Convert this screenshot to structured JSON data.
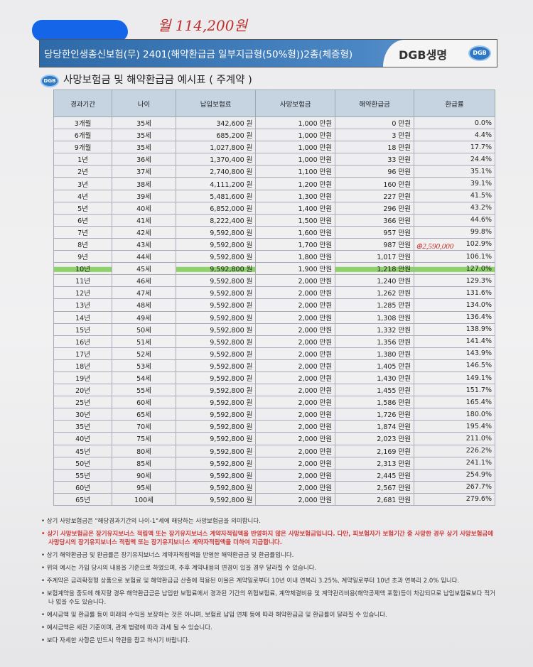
{
  "handwritten": {
    "monthly": "월 114,200원",
    "note": "⊕2,590,000"
  },
  "header": {
    "title": "당당한인생종신보험(무) 2401(해약환급금 일부지급형(50%형))2종(체증형)",
    "brand": "DGB생명",
    "logo_text": "DGB"
  },
  "section": {
    "title": "사망보험금 및 해약환급금 예시표 ( 주계약 )"
  },
  "table": {
    "headers": [
      "경과기간",
      "나이",
      "납입보험료",
      "사망보험금",
      "해약환급금",
      "환급률"
    ],
    "rows": [
      [
        "3개월",
        "35세",
        "342,600 원",
        "1,000 만원",
        "0 만원",
        "0.0%"
      ],
      [
        "6개월",
        "35세",
        "685,200 원",
        "1,000 만원",
        "3 만원",
        "4.4%"
      ],
      [
        "9개월",
        "35세",
        "1,027,800 원",
        "1,000 만원",
        "18 만원",
        "17.7%"
      ],
      [
        "1년",
        "36세",
        "1,370,400 원",
        "1,000 만원",
        "33 만원",
        "24.4%"
      ],
      [
        "2년",
        "37세",
        "2,740,800 원",
        "1,100 만원",
        "96 만원",
        "35.1%"
      ],
      [
        "3년",
        "38세",
        "4,111,200 원",
        "1,200 만원",
        "160 만원",
        "39.1%"
      ],
      [
        "4년",
        "39세",
        "5,481,600 원",
        "1,300 만원",
        "227 만원",
        "41.5%"
      ],
      [
        "5년",
        "40세",
        "6,852,000 원",
        "1,400 만원",
        "296 만원",
        "43.2%"
      ],
      [
        "6년",
        "41세",
        "8,222,400 원",
        "1,500 만원",
        "366 만원",
        "44.6%"
      ],
      [
        "7년",
        "42세",
        "9,592,800 원",
        "1,600 만원",
        "957 만원",
        "99.8%"
      ],
      [
        "8년",
        "43세",
        "9,592,800 원",
        "1,700 만원",
        "987 만원",
        "102.9%"
      ],
      [
        "9년",
        "44세",
        "9,592,800 원",
        "1,800 만원",
        "1,017 만원",
        "106.1%"
      ],
      [
        "10년",
        "45세",
        "9,592,800 원",
        "1,900 만원",
        "1,218 만원",
        "127.0%"
      ],
      [
        "11년",
        "46세",
        "9,592,800 원",
        "2,000 만원",
        "1,240 만원",
        "129.3%"
      ],
      [
        "12년",
        "47세",
        "9,592,800 원",
        "2,000 만원",
        "1,262 만원",
        "131.6%"
      ],
      [
        "13년",
        "48세",
        "9,592,800 원",
        "2,000 만원",
        "1,285 만원",
        "134.0%"
      ],
      [
        "14년",
        "49세",
        "9,592,800 원",
        "2,000 만원",
        "1,308 만원",
        "136.4%"
      ],
      [
        "15년",
        "50세",
        "9,592,800 원",
        "2,000 만원",
        "1,332 만원",
        "138.9%"
      ],
      [
        "16년",
        "51세",
        "9,592,800 원",
        "2,000 만원",
        "1,356 만원",
        "141.4%"
      ],
      [
        "17년",
        "52세",
        "9,592,800 원",
        "2,000 만원",
        "1,380 만원",
        "143.9%"
      ],
      [
        "18년",
        "53세",
        "9,592,800 원",
        "2,000 만원",
        "1,405 만원",
        "146.5%"
      ],
      [
        "19년",
        "54세",
        "9,592,800 원",
        "2,000 만원",
        "1,430 만원",
        "149.1%"
      ],
      [
        "20년",
        "55세",
        "9,592,800 원",
        "2,000 만원",
        "1,455 만원",
        "151.7%"
      ],
      [
        "25년",
        "60세",
        "9,592,800 원",
        "2,000 만원",
        "1,586 만원",
        "165.4%"
      ],
      [
        "30년",
        "65세",
        "9,592,800 원",
        "2,000 만원",
        "1,726 만원",
        "180.0%"
      ],
      [
        "35년",
        "70세",
        "9,592,800 원",
        "2,000 만원",
        "1,874 만원",
        "195.4%"
      ],
      [
        "40년",
        "75세",
        "9,592,800 원",
        "2,000 만원",
        "2,023 만원",
        "211.0%"
      ],
      [
        "45년",
        "80세",
        "9,592,800 원",
        "2,000 만원",
        "2,169 만원",
        "226.2%"
      ],
      [
        "50년",
        "85세",
        "9,592,800 원",
        "2,000 만원",
        "2,313 만원",
        "241.1%"
      ],
      [
        "55년",
        "90세",
        "9,592,800 원",
        "2,000 만원",
        "2,445 만원",
        "254.9%"
      ],
      [
        "60년",
        "95세",
        "9,592,800 원",
        "2,000 만원",
        "2,567 만원",
        "267.7%"
      ],
      [
        "65년",
        "100세",
        "9,592,800 원",
        "2,000 만원",
        "2,681 만원",
        "279.6%"
      ]
    ],
    "highlighted_row": "10년"
  },
  "notes": [
    {
      "text": "• 상기 사망보험금은 \"해당경과기간의 나이-1\"세에 해당하는 사망보험금을 의미합니다.",
      "red": false
    },
    {
      "text": "• 상기 사망보험금은 장기유지보너스 적립액 또는 장기유지보너스 계약자적립액을 반영하지 않은 사망보험금입니다. 다만, 피보험자가 보험기간 중 사망한 경우 상기 사망보험금에 사망당시의 장기유지보너스 적립액 또는 장기유지보너스 계약자적립액을 더하여 지급합니다.",
      "red": true
    },
    {
      "text": "• 상기 해약환급금 및 환급률은 장기유지보너스 계약자적립액을 반영한 해약환급금 및 환급률입니다.",
      "red": false
    },
    {
      "text": "• 위의 예시는 가입 당시의 내용을 기준으로 하였으며, 추후 계약내용의 변경이 있을 경우 달라질 수 있습니다.",
      "red": false
    },
    {
      "text": "• 주계약은 금리확정형 상품으로 보험료 및 해약환급금 산출에 적용된 이율은 계약일로부터 10년 이내 연복리 3.25%, 계약일로부터 10년 초과 연복리 2.0% 입니다.",
      "red": false
    },
    {
      "text": "• 보험계약을 중도에 해지할 경우 해약환급금은 납입한 보험료에서 경과된 기간의 위험보험료, 계약체결비용 및 계약관리비용(해약공제액 포함)등이 차감되므로 납입보험료보다 적거나 없을 수도 있습니다.",
      "red": false
    },
    {
      "text": "• 예시금액 및 환급률 등이 미래의 수익을 보장하는 것은 아니며, 보험료 납입 연체 등에 따라 해약환급금 및 환급률이 달라질 수 있습니다.",
      "red": false
    },
    {
      "text": "• 예시금액은 세전 기준이며, 관계 법령에 따라 과세 될 수 있습니다.",
      "red": false
    },
    {
      "text": "• 보다 자세한 사항은 반드시 약관을 참고 하시기 바랍니다.",
      "red": false
    }
  ],
  "colors": {
    "title_bar": "#3a78b8",
    "header_bg": "#c6d4e2",
    "highlight": "#8fd16a",
    "red_note": "#d23a3a",
    "handwriting": "#c0302b",
    "redaction": "#1565e8"
  }
}
